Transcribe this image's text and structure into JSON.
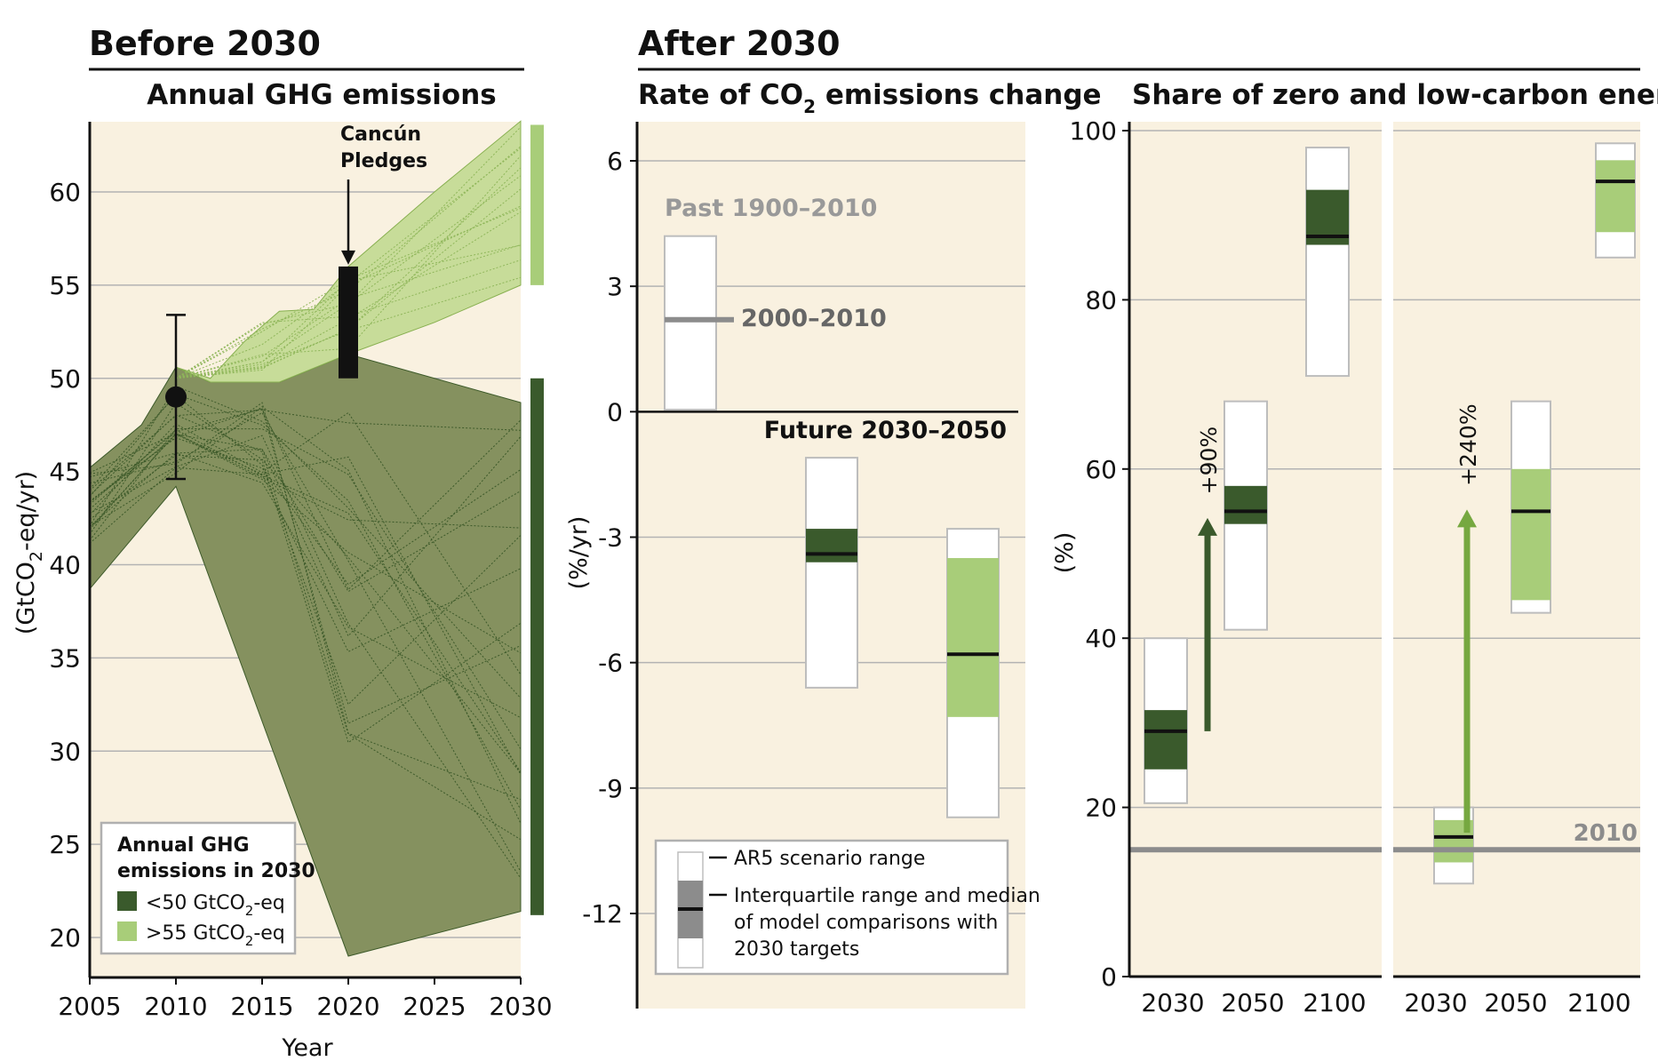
{
  "headings": {
    "before": "Before 2030",
    "after": "After 2030",
    "annual": "Annual GHG emissions",
    "rate_pre": "Rate of CO",
    "rate_sub": "2",
    "rate_post": " emissions change",
    "share": "Share of zero and low-carbon energy"
  },
  "colors": {
    "background": "#f9f1e0",
    "dark_green": "#3a5a2c",
    "light_green": "#a8cd79",
    "dark_fill": "#85915f",
    "light_fill": "#c7dc99",
    "arrow_dark": "#3a5a2c",
    "arrow_light": "#76a840",
    "gray": "#8c8c8c"
  },
  "chart_data": [
    {
      "type": "area",
      "title": "Annual GHG emissions",
      "xlabel": "Year",
      "ylabel_pre": "(GtCO",
      "ylabel_sub": "2",
      "ylabel_post": "-eq/yr)",
      "xlim": [
        2005,
        2030
      ],
      "ylim": [
        18,
        64
      ],
      "xticks": [
        2005,
        2010,
        2015,
        2020,
        2025,
        2030
      ],
      "yticks": [
        20,
        25,
        30,
        35,
        40,
        45,
        50,
        55,
        60
      ],
      "grid": "horizontal",
      "historical_2010": {
        "median": 49,
        "low": 44.6,
        "high": 53.4
      },
      "pledges": {
        "label_line1": "Cancún",
        "label_line2": "Pledges",
        "year": 2020,
        "low": 50,
        "high": 56
      },
      "series": [
        {
          "name": "<50 GtCO2-eq",
          "upper": [
            [
              2005,
              45.2
            ],
            [
              2008,
              47.5
            ],
            [
              2010,
              50.6
            ],
            [
              2012,
              49.8
            ],
            [
              2016,
              49.8
            ],
            [
              2020,
              51.3
            ],
            [
              2025,
              50
            ],
            [
              2030,
              48.7
            ]
          ],
          "lower": [
            [
              2005,
              38.7
            ],
            [
              2008,
              42
            ],
            [
              2010,
              44.2
            ],
            [
              2020,
              19
            ],
            [
              2030,
              21.4
            ]
          ]
        },
        {
          "name": ">55 GtCO2-eq",
          "upper": [
            [
              2010,
              50.6
            ],
            [
              2012,
              50
            ],
            [
              2014,
              52
            ],
            [
              2016,
              53.6
            ],
            [
              2018,
              53.7
            ],
            [
              2020,
              56
            ],
            [
              2025,
              60
            ],
            [
              2030,
              63.8
            ]
          ],
          "lower": [
            [
              2010,
              50.6
            ],
            [
              2012,
              49.8
            ],
            [
              2016,
              49.8
            ],
            [
              2020,
              51.3
            ],
            [
              2025,
              53
            ],
            [
              2030,
              55
            ]
          ]
        }
      ],
      "range_bars": [
        {
          "series": ">55 GtCO2-eq",
          "low": 55,
          "high": 63.6
        },
        {
          "series": "<50 GtCO2-eq",
          "low": 21.2,
          "high": 50
        }
      ],
      "legend": {
        "title_line1": "Annual GHG",
        "title_line2": "emissions in 2030",
        "entries": [
          {
            "pre": "<50 GtCO",
            "sub": "2",
            "post": "-eq"
          },
          {
            "pre": ">55 GtCO",
            "sub": "2",
            "post": "-eq"
          }
        ],
        "position": "bottom-left"
      }
    },
    {
      "type": "box",
      "title": "Rate of CO2 emissions change",
      "ylabel": "(%/yr)",
      "ylim": [
        -14,
        7
      ],
      "yticks": [
        6,
        3,
        0,
        -3,
        -6,
        -9,
        -12
      ],
      "grid": "horizontal",
      "past": {
        "label": "Past 1900–2010",
        "low": 0.05,
        "high": 4.2,
        "line_value": 2.2,
        "line_label": "2000–2010"
      },
      "future": {
        "label": "Future 2030–2050",
        "boxes": [
          {
            "series": "<50 GtCO2-eq",
            "range": [
              -6.6,
              -1.1
            ],
            "iqr": [
              -3.6,
              -2.8
            ],
            "median": -3.4
          },
          {
            "series": ">55 GtCO2-eq",
            "range": [
              -9.7,
              -2.8
            ],
            "iqr": [
              -7.3,
              -3.5
            ],
            "median": -5.8
          }
        ]
      },
      "legend": {
        "item1": "AR5 scenario range",
        "item2_line1": "Interquartile range and median",
        "item2_line2": "of model comparisons with",
        "item2_line3": "2030 targets",
        "position": "bottom"
      }
    },
    {
      "type": "box",
      "title": "Share of zero and low-carbon energy",
      "ylabel": "(%)",
      "ylim": [
        0,
        100
      ],
      "yticks": [
        0,
        20,
        40,
        60,
        80,
        100
      ],
      "xticks": [
        "2030",
        "2050",
        "2100"
      ],
      "grid": "horizontal",
      "reference": {
        "label": "2010",
        "value": 15
      },
      "groups": [
        {
          "series": "<50 GtCO2-eq",
          "arrow_label": "+90%",
          "boxes": [
            {
              "year": "2030",
              "range": [
                20.5,
                40
              ],
              "iqr": [
                24.5,
                31.5
              ],
              "median": 29
            },
            {
              "year": "2050",
              "range": [
                41,
                68
              ],
              "iqr": [
                53.5,
                58
              ],
              "median": 55
            },
            {
              "year": "2100",
              "range": [
                71,
                98
              ],
              "iqr": [
                86.5,
                93
              ],
              "median": 87.5
            }
          ]
        },
        {
          "series": ">55 GtCO2-eq",
          "arrow_label": "+240%",
          "boxes": [
            {
              "year": "2030",
              "range": [
                11,
                20
              ],
              "iqr": [
                13.5,
                18.5
              ],
              "median": 16.5
            },
            {
              "year": "2050",
              "range": [
                43,
                68
              ],
              "iqr": [
                44.5,
                60
              ],
              "median": 55
            },
            {
              "year": "2100",
              "range": [
                85,
                98.5
              ],
              "iqr": [
                88,
                96.5
              ],
              "median": 94
            }
          ]
        }
      ]
    }
  ]
}
